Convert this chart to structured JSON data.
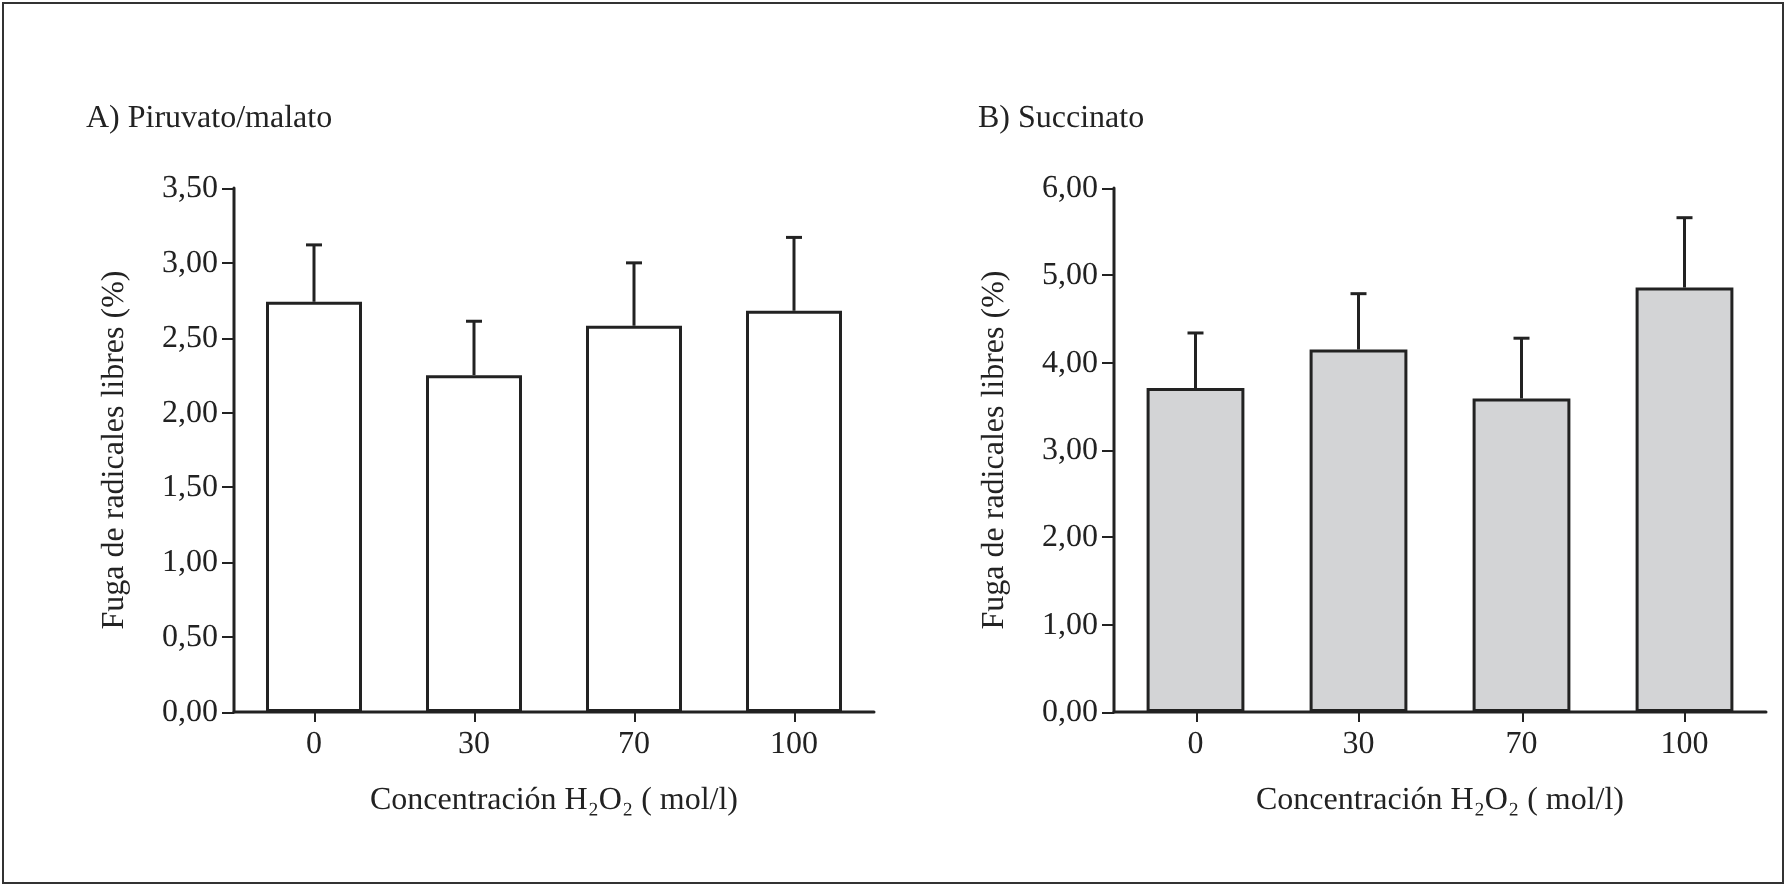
{
  "chart_data": [
    {
      "type": "bar",
      "title": "A) Piruvato/malato",
      "xlabel": "Concentración H₂O₂ ( mol/l)",
      "ylabel": "Fuga de radicales libres (%)",
      "categories": [
        "0",
        "30",
        "70",
        "100"
      ],
      "series": [
        {
          "color": "#ffffff",
          "values": [
            2.74,
            2.25,
            2.58,
            2.68
          ],
          "errors": [
            [
              2.74,
              3.12
            ],
            [
              2.25,
              2.61
            ],
            [
              2.58,
              3.0
            ],
            [
              2.68,
              3.17
            ]
          ]
        }
      ],
      "ylim": [
        0,
        3.5
      ],
      "yticks": [
        {
          "value": 0,
          "label": "0,00"
        },
        {
          "value": 0.5,
          "label": "0,50"
        },
        {
          "value": 1,
          "label": "1,00"
        },
        {
          "value": 1.5,
          "label": "1,50"
        },
        {
          "value": 2,
          "label": "2,00"
        },
        {
          "value": 2.5,
          "label": "2,50"
        },
        {
          "value": 3,
          "label": "3,00"
        },
        {
          "value": 3.5,
          "label": "3,50"
        }
      ],
      "grid": false
    },
    {
      "type": "bar",
      "title": "B) Succinato",
      "xlabel": "Concentración H₂O₂ ( mol/l)",
      "ylabel": "Fuga de radicales libres (%)",
      "categories": [
        "0",
        "30",
        "70",
        "100"
      ],
      "series": [
        {
          "color": "#d3d4d6",
          "values": [
            3.71,
            4.15,
            3.59,
            4.86
          ],
          "errors": [
            [
              3.71,
              4.34
            ],
            [
              4.15,
              4.79
            ],
            [
              3.59,
              4.28
            ],
            [
              4.86,
              5.66
            ]
          ]
        }
      ],
      "ylim": [
        0,
        6
      ],
      "yticks": [
        {
          "value": 0,
          "label": "0,00"
        },
        {
          "value": 1,
          "label": "1,00"
        },
        {
          "value": 2,
          "label": "2,00"
        },
        {
          "value": 3,
          "label": "3,00"
        },
        {
          "value": 4,
          "label": "4,00"
        },
        {
          "value": 5,
          "label": "5,00"
        },
        {
          "value": 6,
          "label": "6,00"
        }
      ],
      "grid": false
    }
  ]
}
